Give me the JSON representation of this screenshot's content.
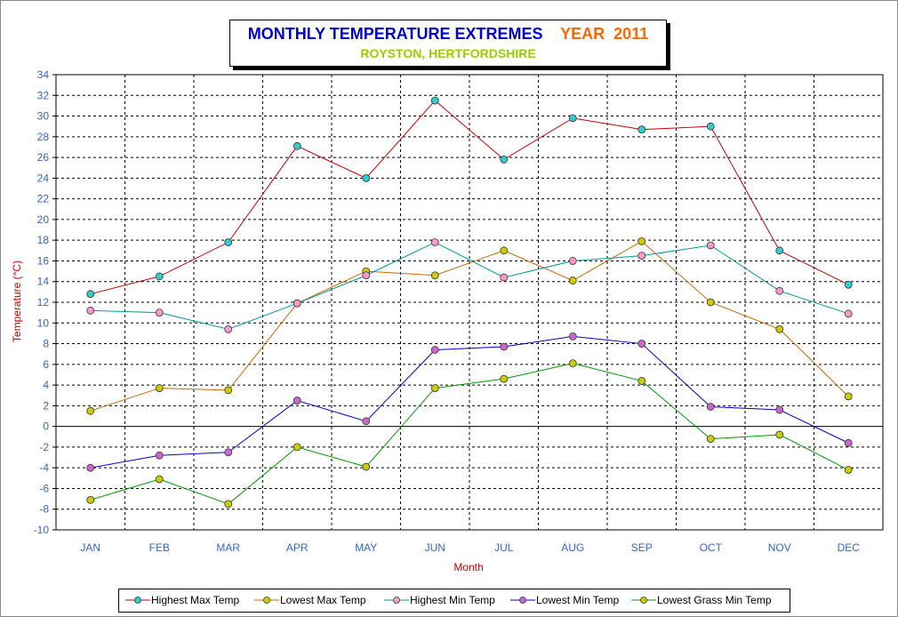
{
  "title": {
    "main": "MONTHLY TEMPERATURE EXTREMES",
    "year": "YEAR  2011",
    "subtitle": "ROYSTON, HERTFORDSHIRE"
  },
  "colors": {
    "title_main": "#0000cc",
    "title_year": "#ff6600",
    "subtitle": "#99cc00",
    "axis_text": "#3366cc",
    "axis_label": "#cc0000"
  },
  "chart_data": {
    "type": "line",
    "title": "MONTHLY TEMPERATURE EXTREMES",
    "xlabel": "Month",
    "ylabel": "Temperature (°C)",
    "ylim": [
      -10,
      34
    ],
    "ytick_step": 2,
    "grid": true,
    "legend_position": "bottom",
    "categories": [
      "JAN",
      "FEB",
      "MAR",
      "APR",
      "MAY",
      "JUN",
      "JUL",
      "AUG",
      "SEP",
      "OCT",
      "NOV",
      "DEC"
    ],
    "series": [
      {
        "name": "Highest Max Temp",
        "line": "#cc0000",
        "marker": "#33cccc",
        "values": [
          12.8,
          14.5,
          17.8,
          27.1,
          24.0,
          31.5,
          25.8,
          29.8,
          28.7,
          29.0,
          17.0,
          13.7
        ]
      },
      {
        "name": "Lowest Max Temp",
        "line": "#cc6600",
        "marker": "#cccc00",
        "values": [
          1.5,
          3.7,
          3.5,
          11.9,
          15.0,
          14.6,
          17.0,
          14.1,
          17.9,
          12.0,
          9.4,
          2.9
        ]
      },
      {
        "name": "Highest Min Temp",
        "line": "#009999",
        "marker": "#ff99cc",
        "values": [
          11.2,
          11.0,
          9.4,
          11.9,
          14.6,
          17.8,
          14.4,
          16.0,
          16.5,
          17.5,
          13.1,
          10.9
        ]
      },
      {
        "name": "Lowest Min Temp",
        "line": "#0000cc",
        "marker": "#cc66cc",
        "values": [
          -4.0,
          -2.8,
          -2.5,
          2.5,
          0.5,
          7.4,
          7.7,
          8.7,
          8.0,
          1.9,
          1.6,
          -1.6
        ]
      },
      {
        "name": "Lowest Grass Min Temp",
        "line": "#009900",
        "marker": "#cccc00",
        "values": [
          -7.1,
          -5.1,
          -7.5,
          -2.0,
          -3.9,
          3.7,
          4.6,
          6.1,
          4.4,
          -1.2,
          -0.8,
          -4.2
        ]
      }
    ]
  }
}
